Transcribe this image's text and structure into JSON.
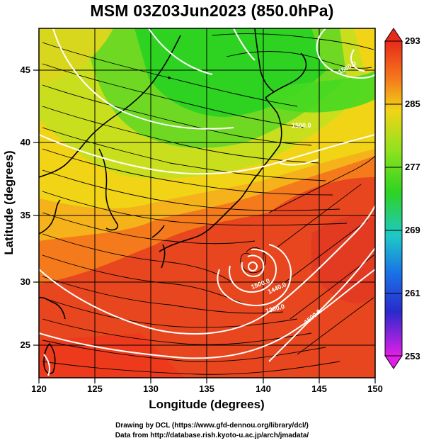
{
  "title": "MSM 03Z03Jun2023 (850.0hPa)",
  "x_axis": {
    "label": "Longitude (degrees)",
    "ticks": [
      "120",
      "125",
      "130",
      "135",
      "140",
      "145",
      "150"
    ],
    "range": [
      120,
      150
    ]
  },
  "y_axis": {
    "label": "Latitude  (degrees)",
    "ticks": [
      "25",
      "30",
      "35",
      "40",
      "45"
    ],
    "range": [
      22.4,
      47.6
    ]
  },
  "colorbar": {
    "ticks": [
      "293",
      "285",
      "277",
      "269",
      "261",
      "253"
    ],
    "range": [
      253,
      293
    ]
  },
  "contour_labels": [
    "1500.0",
    "1440.0",
    "1380.0",
    "1500.0",
    "1500.0",
    "1500.0"
  ],
  "typhoon_center": {
    "lon": 139,
    "lat": 31.3
  },
  "credits": {
    "line1": "Drawing by DCL (https://www.gfd-dennou.org/library/dcl/)",
    "line2": "Data from http://database.rish.kyoto-u.ac.jp/arch/jmadata/"
  },
  "colors": {
    "warm": "#e8331d",
    "mid_warm": "#f47a1c",
    "yellow": "#f2d417",
    "green": "#2ed321",
    "contour": "#ffffff",
    "streamline": "#000000"
  }
}
